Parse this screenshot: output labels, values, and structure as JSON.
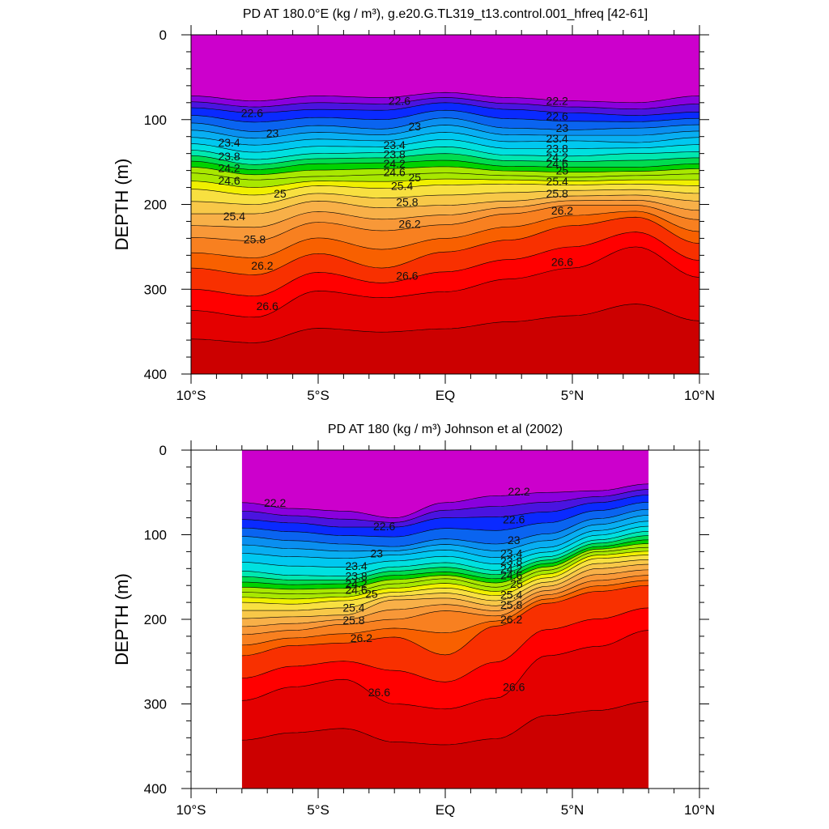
{
  "chart_data": [
    {
      "type": "contour",
      "title": "PD AT 180.0°E (kg / m³), g.e20.G.TL319_t13.control.001_hfreq [42-61]",
      "ylabel": "DEPTH (m)",
      "xlabel": "",
      "x_ticks": [
        "10°S",
        "5°S",
        "EQ",
        "5°N",
        "10°N"
      ],
      "x_tick_values": [
        -10,
        -5,
        0,
        5,
        10
      ],
      "xlim": [
        -10,
        10
      ],
      "y_ticks": [
        "0",
        "100",
        "200",
        "300",
        "400"
      ],
      "y_tick_values": [
        0,
        100,
        200,
        300,
        400
      ],
      "ylim": [
        0,
        400
      ],
      "y_inverted": true,
      "data_xlim": [
        -10,
        10
      ],
      "data_ylim": [
        0,
        400
      ],
      "contour_levels": [
        22.2,
        22.6,
        23,
        23.4,
        23.8,
        24.2,
        24.6,
        25,
        25.4,
        25.8,
        26.2,
        26.6
      ],
      "depth_profiles": [
        {
          "lat": -10,
          "depths": [
            72,
            86,
            104,
            121,
            136,
            149,
            163,
            182,
            211,
            239,
            275,
            325
          ]
        },
        {
          "lat": -7.5,
          "depths": [
            78,
            92,
            114,
            130,
            147,
            159,
            171,
            189,
            211,
            243,
            283,
            333
          ]
        },
        {
          "lat": -5,
          "depths": [
            72,
            88,
            107,
            123,
            140,
            152,
            167,
            178,
            196,
            221,
            258,
            302
          ]
        },
        {
          "lat": -2.5,
          "depths": [
            74,
            89,
            111,
            125,
            139,
            151,
            165,
            181,
            204,
            231,
            275,
            310
          ]
        },
        {
          "lat": 0,
          "depths": [
            68,
            80,
            98,
            115,
            132,
            148,
            163,
            177,
            201,
            224,
            256,
            303
          ]
        },
        {
          "lat": 2.5,
          "depths": [
            74,
            88,
            110,
            126,
            142,
            155,
            166,
            176,
            196,
            211,
            242,
            288
          ]
        },
        {
          "lat": 5,
          "depths": [
            78,
            92,
            112,
            125,
            143,
            156,
            168,
            177,
            190,
            201,
            225,
            275
          ]
        },
        {
          "lat": 7.5,
          "depths": [
            80,
            95,
            110,
            127,
            140,
            156,
            166,
            176,
            189,
            201,
            215,
            250
          ]
        },
        {
          "lat": 10,
          "depths": [
            72,
            91,
            106,
            121,
            138,
            152,
            164,
            178,
            196,
            218,
            246,
            286
          ]
        }
      ],
      "contour_labels": [
        {
          "text": "22.6",
          "lat": -7.6,
          "depth": 92
        },
        {
          "text": "23",
          "lat": -6.8,
          "depth": 116
        },
        {
          "text": "23.4",
          "lat": -8.5,
          "depth": 127
        },
        {
          "text": "23.8",
          "lat": -8.5,
          "depth": 143
        },
        {
          "text": "24.2",
          "lat": -8.5,
          "depth": 157
        },
        {
          "text": "24.6",
          "lat": -8.5,
          "depth": 172
        },
        {
          "text": "25",
          "lat": -6.5,
          "depth": 187
        },
        {
          "text": "25.4",
          "lat": -8.3,
          "depth": 214
        },
        {
          "text": "25.8",
          "lat": -7.5,
          "depth": 241
        },
        {
          "text": "26.2",
          "lat": -7.2,
          "depth": 272
        },
        {
          "text": "26.6",
          "lat": -7.0,
          "depth": 320
        },
        {
          "text": "22.6",
          "lat": -1.8,
          "depth": 78
        },
        {
          "text": "23",
          "lat": -1.2,
          "depth": 108
        },
        {
          "text": "23.4",
          "lat": -2.0,
          "depth": 130
        },
        {
          "text": "23.8",
          "lat": -2.0,
          "depth": 141
        },
        {
          "text": "24.2",
          "lat": -2.0,
          "depth": 152
        },
        {
          "text": "24.6",
          "lat": -2.0,
          "depth": 162
        },
        {
          "text": "25",
          "lat": -1.2,
          "depth": 168
        },
        {
          "text": "25.4",
          "lat": -1.7,
          "depth": 178
        },
        {
          "text": "25.8",
          "lat": -1.5,
          "depth": 197
        },
        {
          "text": "26.2",
          "lat": -1.4,
          "depth": 223
        },
        {
          "text": "26.6",
          "lat": -1.5,
          "depth": 284
        },
        {
          "text": "22.2",
          "lat": 4.4,
          "depth": 78
        },
        {
          "text": "22.6",
          "lat": 4.4,
          "depth": 96
        },
        {
          "text": "23",
          "lat": 4.6,
          "depth": 110
        },
        {
          "text": "23.4",
          "lat": 4.4,
          "depth": 122
        },
        {
          "text": "23.8",
          "lat": 4.4,
          "depth": 134
        },
        {
          "text": "24.2",
          "lat": 4.4,
          "depth": 144
        },
        {
          "text": "24.6",
          "lat": 4.4,
          "depth": 152
        },
        {
          "text": "25",
          "lat": 4.6,
          "depth": 160
        },
        {
          "text": "25.4",
          "lat": 4.4,
          "depth": 173
        },
        {
          "text": "25.8",
          "lat": 4.4,
          "depth": 187
        },
        {
          "text": "26.2",
          "lat": 4.6,
          "depth": 207
        },
        {
          "text": "26.6",
          "lat": 4.6,
          "depth": 268
        }
      ],
      "grid": false
    },
    {
      "type": "contour",
      "title": "PD AT 180 (kg / m³) Johnson et al (2002)",
      "ylabel": "DEPTH (m)",
      "xlabel": "",
      "x_ticks": [
        "10°S",
        "5°S",
        "EQ",
        "5°N",
        "10°N"
      ],
      "x_tick_values": [
        -10,
        -5,
        0,
        5,
        10
      ],
      "xlim": [
        -10,
        10
      ],
      "y_ticks": [
        "0",
        "100",
        "200",
        "300",
        "400"
      ],
      "y_tick_values": [
        0,
        100,
        200,
        300,
        400
      ],
      "ylim": [
        0,
        400
      ],
      "y_inverted": true,
      "data_xlim": [
        -8,
        8
      ],
      "data_ylim": [
        0,
        400
      ],
      "contour_levels": [
        22.2,
        22.6,
        23,
        23.4,
        23.8,
        24.2,
        24.6,
        25,
        25.4,
        25.8,
        26.2,
        26.6
      ],
      "depth_profiles": [
        {
          "lat": -8,
          "depths": [
            62,
            82,
            102,
            122,
            143,
            156,
            168,
            180,
            199,
            218,
            243,
            296
          ]
        },
        {
          "lat": -6,
          "depths": [
            69,
            86,
            107,
            126,
            148,
            159,
            170,
            182,
            197,
            213,
            231,
            280
          ]
        },
        {
          "lat": -4,
          "depths": [
            72,
            91,
            111,
            128,
            149,
            158,
            169,
            178,
            195,
            206,
            228,
            271
          ]
        },
        {
          "lat": -2,
          "depths": [
            80,
            91,
            114,
            124,
            138,
            148,
            158,
            168,
            177,
            200,
            221,
            300
          ]
        },
        {
          "lat": 0,
          "depths": [
            62,
            80,
            105,
            118,
            133,
            144,
            152,
            163,
            175,
            190,
            242,
            306
          ]
        },
        {
          "lat": 2,
          "depths": [
            54,
            79,
            111,
            127,
            142,
            152,
            162,
            172,
            184,
            196,
            208,
            293
          ]
        },
        {
          "lat": 4,
          "depths": [
            50,
            73,
            99,
            115,
            126,
            134,
            142,
            151,
            161,
            171,
            181,
            243
          ]
        },
        {
          "lat": 6,
          "depths": [
            48,
            62,
            81,
            95,
            106,
            114,
            120,
            128,
            140,
            154,
            167,
            232
          ]
        },
        {
          "lat": 8,
          "depths": [
            40,
            53,
            70,
            84,
            96,
            106,
            115,
            124,
            135,
            148,
            160,
            213
          ]
        }
      ],
      "contour_labels": [
        {
          "text": "22.2",
          "lat": -6.7,
          "depth": 62
        },
        {
          "text": "22.6",
          "lat": -2.4,
          "depth": 90
        },
        {
          "text": "23",
          "lat": -2.7,
          "depth": 122
        },
        {
          "text": "23.4",
          "lat": -3.5,
          "depth": 137
        },
        {
          "text": "23.8",
          "lat": -3.5,
          "depth": 149
        },
        {
          "text": "24.2",
          "lat": -3.5,
          "depth": 158
        },
        {
          "text": "24.6",
          "lat": -3.5,
          "depth": 165
        },
        {
          "text": "25",
          "lat": -2.9,
          "depth": 170
        },
        {
          "text": "25.4",
          "lat": -3.6,
          "depth": 186
        },
        {
          "text": "25.8",
          "lat": -3.6,
          "depth": 201
        },
        {
          "text": "26.2",
          "lat": -3.3,
          "depth": 222
        },
        {
          "text": "26.6",
          "lat": -2.6,
          "depth": 286
        },
        {
          "text": "22.2",
          "lat": 2.9,
          "depth": 49
        },
        {
          "text": "22.6",
          "lat": 2.7,
          "depth": 82
        },
        {
          "text": "23",
          "lat": 2.7,
          "depth": 106
        },
        {
          "text": "23.4",
          "lat": 2.6,
          "depth": 122
        },
        {
          "text": "23.8",
          "lat": 2.6,
          "depth": 131
        },
        {
          "text": "24.2",
          "lat": 2.6,
          "depth": 140
        },
        {
          "text": "24.6",
          "lat": 2.6,
          "depth": 148
        },
        {
          "text": "25",
          "lat": 2.8,
          "depth": 158
        },
        {
          "text": "25.4",
          "lat": 2.6,
          "depth": 171
        },
        {
          "text": "25.8",
          "lat": 2.6,
          "depth": 183
        },
        {
          "text": "26.2",
          "lat": 2.6,
          "depth": 200
        },
        {
          "text": "26.6",
          "lat": 2.7,
          "depth": 280
        }
      ],
      "grid": false
    }
  ],
  "colors": {
    "fill_scale": [
      "#cc00cc",
      "#8a00dd",
      "#4a14e0",
      "#0a2aff",
      "#0a64f0",
      "#0a8ff0",
      "#08aef2",
      "#00c8f0",
      "#00e0e0",
      "#00e8b0",
      "#00dc50",
      "#00d200",
      "#a8e800",
      "#f0f000",
      "#f8e040",
      "#f8c848",
      "#f8b048",
      "#f89838",
      "#f88020",
      "#f86000",
      "#f83000",
      "#ff0000",
      "#e40000",
      "#cc0000"
    ]
  }
}
